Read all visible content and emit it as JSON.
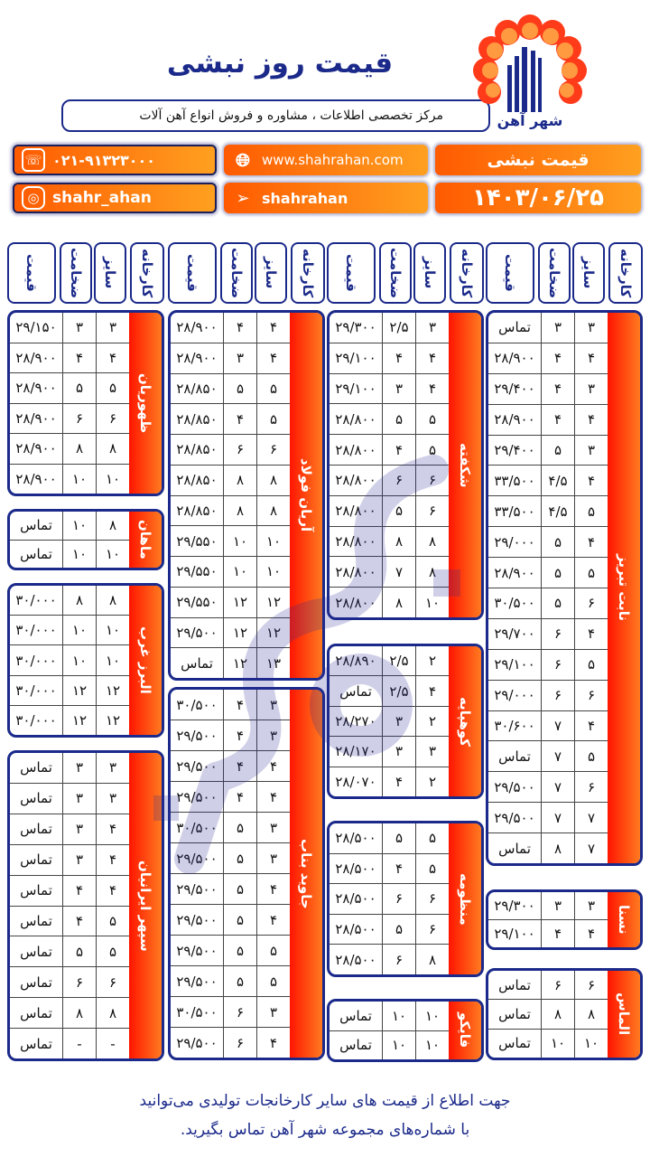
{
  "header": {
    "title": "قیمت روز نبشی",
    "subtitle": "مرکز تخصصی اطلاعات ، مشاوره و فروش انواع آهن آلات",
    "logo_text": "شهر آهن",
    "phone": "۰۲۱-۹۱۳۲۳۰۰۰",
    "website": "www.shahrahan.com",
    "product_label": "قیمت نبشی",
    "instagram": "shahr_ahan",
    "telegram": "shahrahan",
    "date": "۱۴۰۳/۰۶/۲۵",
    "icons": {
      "phone": "phone-icon",
      "web": "globe-icon",
      "instagram": "instagram-icon",
      "telegram": "telegram-icon"
    }
  },
  "column_headers": {
    "factory": "کارخانه",
    "size": "سایز",
    "thickness": "ضخامت",
    "price": "قیمت"
  },
  "watermark": "شهر آهن",
  "colors": {
    "navy": "#1b2a8a",
    "orange": "#ff6a00",
    "red": "#ff1500"
  },
  "columns": [
    {
      "blocks": [
        {
          "factory": "نابت تبریز",
          "rows": [
            [
              "۳",
              "۳",
              "تماس"
            ],
            [
              "۴",
              "۴",
              "۲۸/۹۰۰"
            ],
            [
              "۳",
              "۴",
              "۲۹/۴۰۰"
            ],
            [
              "۴",
              "۴",
              "۲۸/۹۰۰"
            ],
            [
              "۳",
              "۵",
              "۲۹/۴۰۰"
            ],
            [
              "۴",
              "۴/۵",
              "۳۳/۵۰۰"
            ],
            [
              "۵",
              "۴/۵",
              "۳۳/۵۰۰"
            ],
            [
              "۴",
              "۵",
              "۲۹/۰۰۰"
            ],
            [
              "۵",
              "۵",
              "۲۸/۹۰۰"
            ],
            [
              "۶",
              "۵",
              "۳۰/۵۰۰"
            ],
            [
              "۴",
              "۶",
              "۲۹/۷۰۰"
            ],
            [
              "۵",
              "۶",
              "۲۹/۱۰۰"
            ],
            [
              "۶",
              "۶",
              "۲۹/۰۰۰"
            ],
            [
              "۴",
              "۷",
              "۳۰/۶۰۰"
            ],
            [
              "۵",
              "۷",
              "تماس"
            ],
            [
              "۶",
              "۷",
              "۲۹/۵۰۰"
            ],
            [
              "۷",
              "۷",
              "۲۹/۵۰۰"
            ],
            [
              "۷",
              "۸",
              "تماس"
            ]
          ]
        },
        {
          "factory": "نسنا",
          "rows": [
            [
              "۳",
              "۳",
              "۲۹/۳۰۰"
            ],
            [
              "۴",
              "۴",
              "۲۹/۱۰۰"
            ]
          ]
        },
        {
          "factory": "الماس",
          "rows": [
            [
              "۶",
              "۶",
              "تماس"
            ],
            [
              "۸",
              "۸",
              "تماس"
            ],
            [
              "۱۰",
              "۱۰",
              "تماس"
            ]
          ]
        }
      ]
    },
    {
      "blocks": [
        {
          "factory": "شکفته",
          "rows": [
            [
              "۳",
              "۲/۵",
              "۲۹/۳۰۰"
            ],
            [
              "۴",
              "۴",
              "۲۹/۱۰۰"
            ],
            [
              "۴",
              "۳",
              "۲۹/۱۰۰"
            ],
            [
              "۵",
              "۵",
              "۲۸/۸۰۰"
            ],
            [
              "۵",
              "۴",
              "۲۸/۸۰۰"
            ],
            [
              "۶",
              "۶",
              "۲۸/۸۰۰"
            ],
            [
              "۶",
              "۵",
              "۲۸/۸۰۰"
            ],
            [
              "۸",
              "۸",
              "۲۸/۸۰۰"
            ],
            [
              "۸",
              "۷",
              "۲۸/۸۰۰"
            ],
            [
              "۱۰",
              "۸",
              "۲۸/۸۰۰"
            ]
          ]
        },
        {
          "factory": "کوهپایه",
          "rows": [
            [
              "۲",
              "۲/۵",
              "۲۸/۸۹۰"
            ],
            [
              "۴",
              "۲/۵",
              "تماس"
            ],
            [
              "۲",
              "۳",
              "۲۸/۲۷۰"
            ],
            [
              "۳",
              "۳",
              "۲۸/۱۷۰"
            ],
            [
              "۲",
              "۴",
              "۲۸/۰۷۰"
            ]
          ]
        },
        {
          "factory": "منظومه",
          "rows": [
            [
              "۵",
              "۵",
              "۲۸/۵۰۰"
            ],
            [
              "۵",
              "۴",
              "۲۸/۵۰۰"
            ],
            [
              "۶",
              "۶",
              "۲۸/۵۰۰"
            ],
            [
              "۶",
              "۵",
              "۲۸/۵۰۰"
            ],
            [
              "۸",
              "۶",
              "۲۸/۵۰۰"
            ]
          ]
        },
        {
          "factory": "فایکو",
          "rows": [
            [
              "۱۰",
              "۱۰",
              "تماس"
            ],
            [
              "۱۰",
              "۱۰",
              "تماس"
            ]
          ]
        }
      ]
    },
    {
      "blocks": [
        {
          "factory": "آریان فولاد",
          "rows": [
            [
              "۴",
              "۴",
              "۲۸/۹۰۰"
            ],
            [
              "۴",
              "۳",
              "۲۸/۹۰۰"
            ],
            [
              "۵",
              "۵",
              "۲۸/۸۵۰"
            ],
            [
              "۵",
              "۴",
              "۲۸/۸۵۰"
            ],
            [
              "۶",
              "۶",
              "۲۸/۸۵۰"
            ],
            [
              "۸",
              "۸",
              "۲۸/۸۵۰"
            ],
            [
              "۸",
              "۸",
              "۲۸/۸۵۰"
            ],
            [
              "۱۰",
              "۱۰",
              "۲۹/۵۵۰"
            ],
            [
              "۱۰",
              "۱۰",
              "۲۹/۵۵۰"
            ],
            [
              "۱۲",
              "۱۲",
              "۲۹/۵۵۰"
            ],
            [
              "۱۲",
              "۱۲",
              "۲۹/۵۰۰"
            ],
            [
              "۱۳",
              "۱۲",
              "تماس"
            ]
          ]
        },
        {
          "factory": "جاوید بناب",
          "rows": [
            [
              "۳",
              "۴",
              "۳۰/۵۰۰"
            ],
            [
              "۳",
              "۴",
              "۲۹/۵۰۰"
            ],
            [
              "۴",
              "۴",
              "۲۹/۵۰۰"
            ],
            [
              "۴",
              "۴",
              "۲۹/۵۰۰"
            ],
            [
              "۳",
              "۵",
              "۳۰/۵۰۰"
            ],
            [
              "۳",
              "۵",
              "۲۹/۵۰۰"
            ],
            [
              "۴",
              "۵",
              "۲۹/۵۰۰"
            ],
            [
              "۴",
              "۵",
              "۲۹/۵۰۰"
            ],
            [
              "۵",
              "۵",
              "۲۹/۵۰۰"
            ],
            [
              "۵",
              "۵",
              "۲۹/۵۰۰"
            ],
            [
              "۳",
              "۶",
              "۳۰/۵۰۰"
            ],
            [
              "۴",
              "۶",
              "۲۹/۵۰۰"
            ]
          ]
        }
      ]
    },
    {
      "blocks": [
        {
          "factory": "ظهوریان",
          "rows": [
            [
              "۳",
              "۳",
              "۲۹/۱۵۰"
            ],
            [
              "۴",
              "۴",
              "۲۸/۹۰۰"
            ],
            [
              "۵",
              "۵",
              "۲۸/۹۰۰"
            ],
            [
              "۶",
              "۶",
              "۲۸/۹۰۰"
            ],
            [
              "۸",
              "۸",
              "۲۸/۹۰۰"
            ],
            [
              "۱۰",
              "۱۰",
              "۲۸/۹۰۰"
            ]
          ]
        },
        {
          "factory": "ماهان",
          "rows": [
            [
              "۸",
              "۱۰",
              "تماس"
            ],
            [
              "۱۰",
              "۱۰",
              "تماس"
            ]
          ]
        },
        {
          "factory": "البرز غرب",
          "rows": [
            [
              "۸",
              "۸",
              "۳۰/۰۰۰"
            ],
            [
              "۱۰",
              "۱۰",
              "۳۰/۰۰۰"
            ],
            [
              "۱۰",
              "۱۰",
              "۳۰/۰۰۰"
            ],
            [
              "۱۲",
              "۱۲",
              "۳۰/۰۰۰"
            ],
            [
              "۱۲",
              "۱۲",
              "۳۰/۰۰۰"
            ]
          ]
        },
        {
          "factory": "سپهر ایرانیان",
          "rows": [
            [
              "۳",
              "۳",
              "تماس"
            ],
            [
              "۳",
              "۳",
              "تماس"
            ],
            [
              "۴",
              "۳",
              "تماس"
            ],
            [
              "۴",
              "۳",
              "تماس"
            ],
            [
              "۴",
              "۴",
              "تماس"
            ],
            [
              "۵",
              "۴",
              "تماس"
            ],
            [
              "۵",
              "۵",
              "تماس"
            ],
            [
              "۶",
              "۶",
              "تماس"
            ],
            [
              "۸",
              "۸",
              "تماس"
            ],
            [
              "-",
              "-",
              "تماس"
            ]
          ]
        }
      ]
    }
  ],
  "footer": {
    "line1": "جهت اطلاع از قیمت های سایر کارخانجات تولیدی می‌توانید",
    "line2": "با شماره‌های مجموعه شهر آهن تماس بگیرید."
  }
}
